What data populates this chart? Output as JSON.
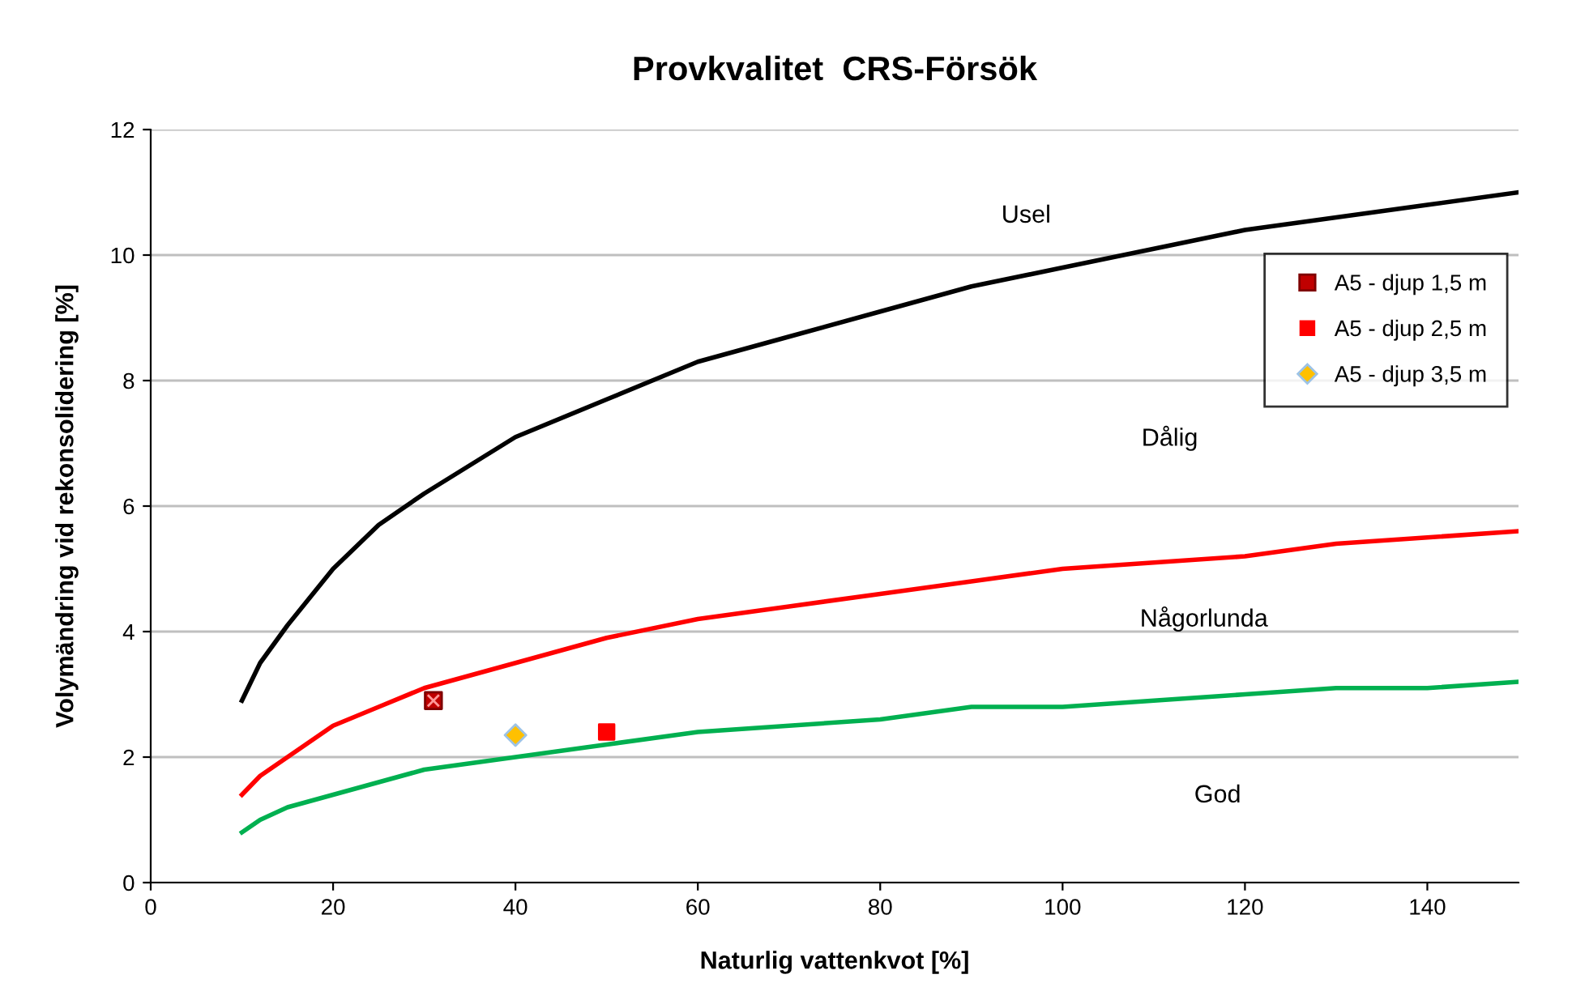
{
  "chart_data": {
    "type": "line",
    "title": "Provkvalitet  CRS-Försök",
    "xlabel": "Naturlig vattenkvot [%]",
    "ylabel": "Volymändring vid rekonsolidering [%]",
    "xlim": [
      0,
      150
    ],
    "xticks": [
      0,
      20,
      40,
      60,
      80,
      100,
      120,
      140
    ],
    "ylim": [
      0,
      12
    ],
    "yticks": [
      0,
      2,
      4,
      6,
      8,
      10,
      12
    ],
    "grid": "y",
    "legend": "top right",
    "marker": "none",
    "line_style": "solid",
    "series": [
      {
        "color": "#000000",
        "x": [
          10,
          12,
          15,
          20,
          25,
          30,
          40,
          50,
          60,
          70,
          80,
          90,
          100,
          110,
          120,
          130,
          140,
          150
        ],
        "values": [
          2.9,
          3.5,
          4.1,
          5.0,
          5.7,
          6.2,
          7.1,
          7.7,
          8.3,
          8.7,
          9.1,
          9.5,
          9.8,
          10.1,
          10.4,
          10.6,
          10.8,
          11.0
        ]
      },
      {
        "color": "#ff0000",
        "x": [
          10,
          12,
          15,
          20,
          25,
          30,
          40,
          50,
          60,
          70,
          80,
          90,
          100,
          110,
          120,
          130,
          140,
          150
        ],
        "values": [
          1.4,
          1.7,
          2.0,
          2.5,
          2.8,
          3.1,
          3.5,
          3.9,
          4.2,
          4.4,
          4.6,
          4.8,
          5.0,
          5.1,
          5.2,
          5.4,
          5.5,
          5.6
        ]
      },
      {
        "color": "#00b050",
        "x": [
          10,
          12,
          15,
          20,
          25,
          30,
          40,
          50,
          60,
          70,
          80,
          90,
          100,
          110,
          120,
          130,
          140,
          150
        ],
        "values": [
          0.8,
          1.0,
          1.2,
          1.4,
          1.6,
          1.8,
          2.0,
          2.2,
          2.4,
          2.5,
          2.6,
          2.8,
          2.8,
          2.9,
          3.0,
          3.1,
          3.1,
          3.2
        ]
      },
      {
        "type": "scatter",
        "name": "A5 - djup 1,5 m",
        "color": "#c00000",
        "marker": "square",
        "x": [
          31
        ],
        "values": [
          2.9
        ]
      },
      {
        "type": "scatter",
        "name": "A5 - djup 2,5 m",
        "color": "#ff0000",
        "marker": "square",
        "x": [
          50
        ],
        "values": [
          2.4
        ]
      },
      {
        "type": "scatter",
        "name": "A5 - djup 3,5 m",
        "color": "#ffc000",
        "marker": "diamond",
        "x": [
          40
        ],
        "values": [
          2.35
        ]
      }
    ],
    "annotations": [
      "Usel",
      "Dålig",
      "Någorlunda",
      "God"
    ]
  }
}
